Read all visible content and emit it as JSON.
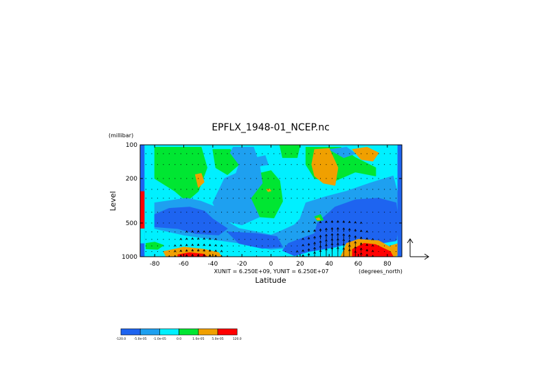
{
  "chart_data": {
    "type": "contour",
    "title": "EPFLX_1948-01_NCEP.nc",
    "ylabel": "Level",
    "yunit": "(millibar)",
    "xlabel": "Latitude",
    "xunit": "(degrees_north)",
    "vector_units": "XUNIT = 6.250E+09, YUNIT = 6.250E+07",
    "x_ticks": [
      "-80",
      "-60",
      "-40",
      "-20",
      "0",
      "20",
      "40",
      "60",
      "80"
    ],
    "x_tick_values": [
      -80,
      -60,
      -40,
      -20,
      0,
      20,
      40,
      60,
      80
    ],
    "xlim": [
      -90,
      90
    ],
    "y_ticks": [
      "100",
      "200",
      "500",
      "1000"
    ],
    "y_tick_values": [
      100,
      200,
      500,
      1000
    ],
    "ylim": [
      1000,
      100
    ],
    "y_scale": "log",
    "legend": {
      "placement": "bottom-left",
      "labels": [
        "-120.0",
        "-5.0e-05",
        "-1.0e-05",
        "0.0",
        "1.0e-05",
        "5.0e-05",
        "120.0"
      ],
      "colors": [
        "#1e64f0",
        "#1ea0f0",
        "#00f0ff",
        "#00e632",
        "#f0a000",
        "#ff0000"
      ]
    },
    "regions": [
      {
        "color": "#00f0ff",
        "points": [
          [
            -90,
            100
          ],
          [
            90,
            100
          ],
          [
            90,
            1000
          ],
          [
            -90,
            1000
          ]
        ]
      },
      {
        "color": "#00e632",
        "points": [
          [
            -80,
            105
          ],
          [
            -48,
            105
          ],
          [
            -44,
            160
          ],
          [
            -50,
            260
          ],
          [
            -58,
            320
          ],
          [
            -66,
            260
          ],
          [
            -80,
            200
          ]
        ]
      },
      {
        "color": "#00e632",
        "points": [
          [
            -40,
            110
          ],
          [
            -28,
            110
          ],
          [
            -22,
            150
          ],
          [
            -30,
            185
          ],
          [
            -38,
            160
          ]
        ]
      },
      {
        "color": "#00e632",
        "points": [
          [
            -12,
            185
          ],
          [
            0,
            170
          ],
          [
            6,
            210
          ],
          [
            8,
            320
          ],
          [
            2,
            450
          ],
          [
            -8,
            440
          ],
          [
            -14,
            300
          ]
        ]
      },
      {
        "color": "#00e632",
        "points": [
          [
            24,
            105
          ],
          [
            48,
            105
          ],
          [
            58,
            130
          ],
          [
            72,
            160
          ],
          [
            72,
            190
          ],
          [
            58,
            175
          ],
          [
            44,
            210
          ],
          [
            30,
            200
          ],
          [
            24,
            150
          ]
        ]
      },
      {
        "color": "#00e632",
        "points": [
          [
            6,
            100
          ],
          [
            20,
            100
          ],
          [
            18,
            130
          ],
          [
            8,
            130
          ]
        ]
      },
      {
        "color": "#1ea0f0",
        "points": [
          [
            -26,
            105
          ],
          [
            -12,
            105
          ],
          [
            -8,
            150
          ],
          [
            -6,
            220
          ],
          [
            -14,
            300
          ],
          [
            -8,
            440
          ],
          [
            -20,
            520
          ],
          [
            -34,
            470
          ],
          [
            -40,
            330
          ],
          [
            -32,
            200
          ],
          [
            -24,
            180
          ],
          [
            -22,
            150
          ],
          [
            -28,
            118
          ]
        ]
      },
      {
        "color": "#1ea0f0",
        "points": [
          [
            -80,
            330
          ],
          [
            -58,
            300
          ],
          [
            -48,
            320
          ],
          [
            -38,
            360
          ],
          [
            -32,
            470
          ],
          [
            -22,
            560
          ],
          [
            -10,
            600
          ],
          [
            0,
            640
          ],
          [
            8,
            580
          ],
          [
            16,
            520
          ],
          [
            20,
            460
          ],
          [
            24,
            330
          ],
          [
            38,
            290
          ],
          [
            52,
            260
          ],
          [
            68,
            220
          ],
          [
            84,
            190
          ],
          [
            88,
            300
          ],
          [
            88,
            700
          ],
          [
            76,
            760
          ],
          [
            60,
            720
          ],
          [
            40,
            760
          ],
          [
            20,
            820
          ],
          [
            0,
            860
          ],
          [
            -20,
            760
          ],
          [
            -40,
            700
          ],
          [
            -60,
            640
          ],
          [
            -80,
            560
          ]
        ]
      },
      {
        "color": "#1ea0f0",
        "points": [
          [
            40,
            110
          ],
          [
            52,
            105
          ],
          [
            58,
            120
          ],
          [
            50,
            130
          ]
        ]
      },
      {
        "color": "#1e64f0",
        "points": [
          [
            -80,
            420
          ],
          [
            -70,
            370
          ],
          [
            -56,
            360
          ],
          [
            -46,
            390
          ],
          [
            -40,
            460
          ],
          [
            -30,
            560
          ],
          [
            -36,
            640
          ],
          [
            -52,
            620
          ],
          [
            -64,
            560
          ],
          [
            -80,
            540
          ]
        ]
      },
      {
        "color": "#1e64f0",
        "points": [
          [
            -30,
            600
          ],
          [
            -10,
            620
          ],
          [
            4,
            660
          ],
          [
            8,
            820
          ],
          [
            -6,
            840
          ],
          [
            -22,
            760
          ]
        ]
      },
      {
        "color": "#1e64f0",
        "points": [
          [
            32,
            500
          ],
          [
            44,
            360
          ],
          [
            58,
            310
          ],
          [
            74,
            300
          ],
          [
            86,
            330
          ],
          [
            88,
            520
          ],
          [
            86,
            720
          ],
          [
            74,
            760
          ],
          [
            60,
            720
          ],
          [
            44,
            820
          ],
          [
            26,
            900
          ],
          [
            16,
            980
          ],
          [
            8,
            880
          ],
          [
            12,
            760
          ],
          [
            22,
            680
          ],
          [
            30,
            620
          ]
        ]
      },
      {
        "color": "#f0a000",
        "points": [
          [
            -52,
            185
          ],
          [
            -48,
            180
          ],
          [
            -46,
            215
          ],
          [
            -50,
            240
          ]
        ]
      },
      {
        "color": "#f0a000",
        "points": [
          [
            30,
            110
          ],
          [
            40,
            108
          ],
          [
            46,
            160
          ],
          [
            44,
            230
          ],
          [
            36,
            220
          ],
          [
            30,
            190
          ],
          [
            28,
            150
          ]
        ]
      },
      {
        "color": "#f0a000",
        "points": [
          [
            56,
            110
          ],
          [
            66,
            105
          ],
          [
            74,
            118
          ],
          [
            70,
            140
          ],
          [
            62,
            135
          ]
        ]
      },
      {
        "color": "#f0a000",
        "points": [
          [
            82,
            800
          ],
          [
            88,
            760
          ],
          [
            88,
            980
          ],
          [
            84,
            960
          ]
        ]
      },
      {
        "color": "#f0a000",
        "points": [
          [
            -74,
            900
          ],
          [
            -60,
            820
          ],
          [
            -46,
            860
          ],
          [
            -36,
            920
          ],
          [
            -34,
            1000
          ],
          [
            -72,
            1000
          ]
        ]
      },
      {
        "color": "#f0a000",
        "points": [
          [
            52,
            760
          ],
          [
            60,
            700
          ],
          [
            74,
            720
          ],
          [
            84,
            850
          ],
          [
            86,
            1000
          ],
          [
            48,
            1000
          ],
          [
            50,
            880
          ]
        ]
      },
      {
        "color": "#ff0000",
        "points": [
          [
            -64,
            960
          ],
          [
            -56,
            920
          ],
          [
            -46,
            950
          ],
          [
            -44,
            1000
          ],
          [
            -64,
            1000
          ]
        ]
      },
      {
        "color": "#ff0000",
        "points": [
          [
            56,
            860
          ],
          [
            64,
            760
          ],
          [
            72,
            780
          ],
          [
            82,
            900
          ],
          [
            84,
            1000
          ],
          [
            56,
            1000
          ]
        ]
      },
      {
        "color": "#00e632",
        "points": [
          [
            -86,
            760
          ],
          [
            -80,
            740
          ],
          [
            -74,
            790
          ],
          [
            -78,
            860
          ],
          [
            -86,
            850
          ]
        ]
      },
      {
        "color": "#00e632",
        "points": [
          [
            -2,
            240
          ],
          [
            0,
            235
          ],
          [
            2,
            250
          ],
          [
            0,
            260
          ]
        ]
      },
      {
        "color": "#f0a000",
        "points": [
          [
            -3,
            250
          ],
          [
            -1,
            248
          ],
          [
            0,
            258
          ],
          [
            -2,
            262
          ]
        ]
      },
      {
        "color": "#00e632",
        "points": [
          [
            30,
            440
          ],
          [
            34,
            420
          ],
          [
            36,
            470
          ],
          [
            32,
            480
          ]
        ]
      },
      {
        "color": "#f0a000",
        "points": [
          [
            31,
            455
          ],
          [
            33,
            448
          ],
          [
            34,
            468
          ],
          [
            32,
            470
          ]
        ]
      },
      {
        "color": "#1ea0f0",
        "points": [
          [
            -10,
            130
          ],
          [
            -4,
            125
          ],
          [
            -2,
            150
          ],
          [
            -8,
            155
          ]
        ]
      }
    ],
    "edge_strips": [
      {
        "x_range": [
          -90,
          -87
        ],
        "levels": [
          100,
          1000
        ],
        "color": "#1e64f0"
      },
      {
        "x_range": [
          -90,
          -87
        ],
        "levels": [
          260,
          560
        ],
        "color": "#ff0000"
      },
      {
        "x_range": [
          -90,
          -87
        ],
        "levels": [
          560,
          760
        ],
        "color": "#00f0ff"
      },
      {
        "x_range": [
          87,
          90
        ],
        "levels": [
          100,
          1000
        ],
        "color": "#1e64f0"
      }
    ],
    "vector_field": {
      "lat_step": 4,
      "levels": [
        120,
        150,
        200,
        250,
        300,
        400,
        500,
        600,
        700,
        800,
        900,
        1000
      ],
      "description": "upward EP flux arrows, largest near 30-60N lower levels"
    }
  },
  "colors": {
    "axis": "#000000",
    "background": "#ffffff"
  }
}
